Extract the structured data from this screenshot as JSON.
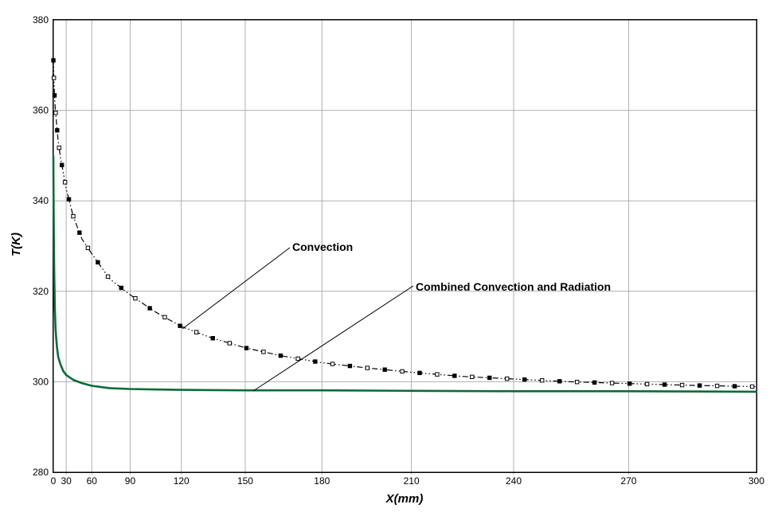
{
  "colors": {
    "background": "#FFFFFF",
    "axis": "#000000",
    "grid": "#B0B0B0",
    "convection_line": "#000000",
    "combined_line": "#0B6B3A"
  },
  "chart_data": {
    "type": "line",
    "title": "",
    "xlabel": "X(mm)",
    "ylabel": "T(K)",
    "grid": "on",
    "legend_position": "none (inline text annotations with leader lines)",
    "x_axis": {
      "min": 0,
      "max": 300,
      "ticks": [
        0,
        30,
        60,
        90,
        120,
        150,
        180,
        210,
        240,
        270,
        300
      ],
      "scale": "nonlinear-expanding (tick spacing grows toward higher x)"
    },
    "y_axis": {
      "min": 280,
      "max": 380,
      "ticks": [
        280,
        300,
        320,
        340,
        360,
        380
      ]
    },
    "series": [
      {
        "name": "Convection",
        "color": "#000000",
        "line_style": "dash-dot-dot",
        "marker": "alternating filled and open squares",
        "x": [
          0,
          1,
          2,
          3,
          5,
          7,
          10,
          15,
          20,
          25,
          30,
          40,
          50,
          60,
          75,
          90,
          105,
          120,
          135,
          150,
          165,
          180,
          195,
          210,
          225,
          240,
          255,
          270,
          285,
          300
        ],
        "y": [
          371.4,
          369.4,
          367.7,
          365.9,
          362.9,
          360.6,
          358.0,
          353.1,
          349.5,
          346.4,
          342.7,
          336.5,
          331.6,
          328.3,
          322.8,
          319.2,
          315.6,
          312.2,
          309.7,
          307.5,
          305.7,
          304.2,
          303.1,
          302.1,
          301.2,
          300.6,
          300.0,
          299.6,
          299.2,
          298.9
        ]
      },
      {
        "name": "Combined Convection and Radiation",
        "color": "#0B6B3A",
        "line_style": "solid",
        "marker": "none",
        "x": [
          0,
          1,
          2,
          3,
          4,
          5,
          6,
          8,
          10,
          12,
          15,
          20,
          25,
          30,
          40,
          50,
          60,
          75,
          90,
          105,
          120,
          150,
          180,
          210,
          240,
          270,
          300
        ],
        "y": [
          349.9,
          340.4,
          332.5,
          327.2,
          323.1,
          319.3,
          316.1,
          311.9,
          309.6,
          307.7,
          305.5,
          303.8,
          302.4,
          301.5,
          300.4,
          299.7,
          299.1,
          298.6,
          298.4,
          298.3,
          298.2,
          298.1,
          298.1,
          298.0,
          297.9,
          297.9,
          297.8
        ]
      }
    ],
    "annotations": [
      {
        "text": "Convection",
        "points_to_series": "Convection"
      },
      {
        "text": "Combined Convection and Radiation",
        "points_to_series": "Combined Convection and Radiation"
      }
    ]
  }
}
